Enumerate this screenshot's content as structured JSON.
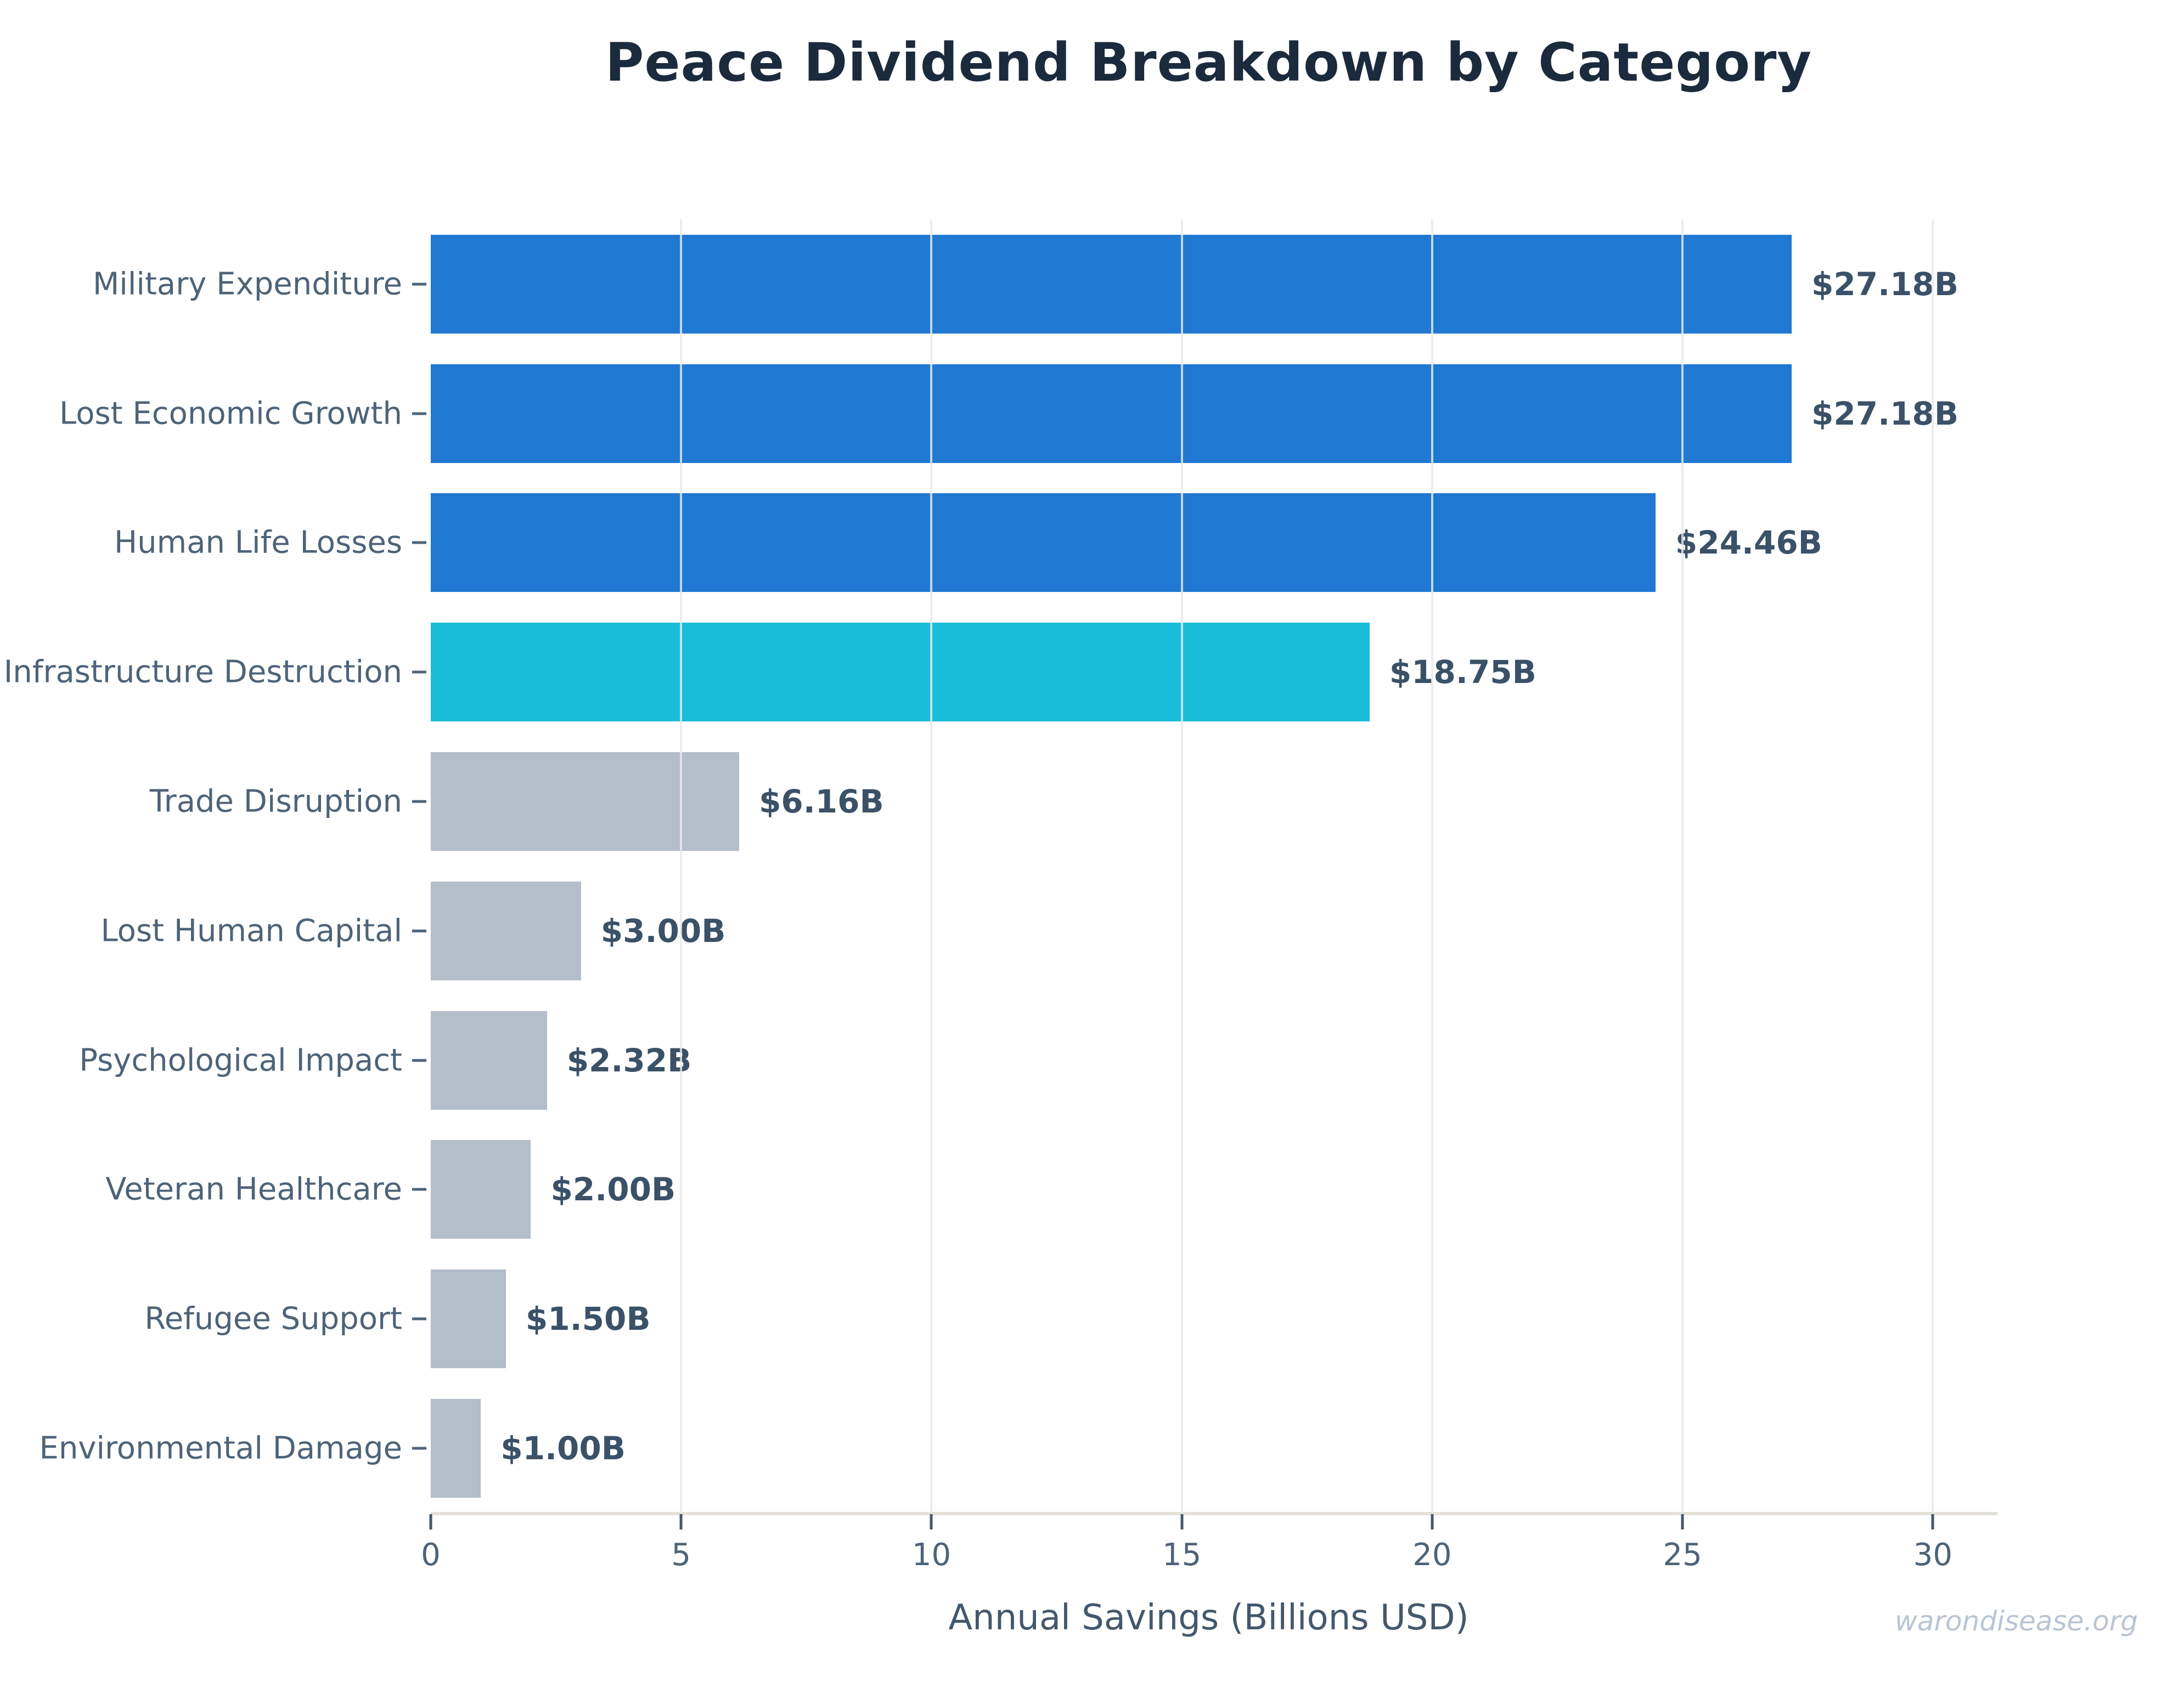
{
  "title": "Peace Dividend Breakdown by Category",
  "watermark": "warondisease.org",
  "chart_data": {
    "type": "bar",
    "orientation": "horizontal",
    "title": "Peace Dividend Breakdown by Category",
    "xlabel": "Annual Savings (Billions USD)",
    "ylabel": "",
    "categories": [
      "Military Expenditure",
      "Lost Economic Growth",
      "Human Life Losses",
      "Infrastructure Destruction",
      "Trade Disruption",
      "Lost Human Capital",
      "Psychological Impact",
      "Veteran Healthcare",
      "Refugee Support",
      "Environmental Damage"
    ],
    "values": [
      27.18,
      27.18,
      24.46,
      18.75,
      6.16,
      3.0,
      2.32,
      2.0,
      1.5,
      1.0
    ],
    "value_labels": [
      "$27.18B",
      "$27.18B",
      "$24.46B",
      "$18.75B",
      "$6.16B",
      "$3.00B",
      "$2.32B",
      "$2.00B",
      "$1.50B",
      "$1.00B"
    ],
    "bar_colors": [
      "#1f78d2",
      "#1f78d2",
      "#1f78d2",
      "#19bdd9",
      "#b4bdca",
      "#b4bdca",
      "#b4bdca",
      "#b4bdca",
      "#b4bdca",
      "#b4bdca"
    ],
    "x_ticks": [
      0,
      5,
      10,
      15,
      20,
      25,
      30
    ],
    "xlim": [
      0,
      31.07
    ],
    "grid": "vertical-light-over-bars",
    "legend": "none",
    "colors": {
      "title_text": "#1b2a3c",
      "category_label": "#4e6378",
      "value_label": "#3a5168",
      "tick_label": "#4e6378",
      "axis_title": "#44586c",
      "axis_line": "#e4e1db",
      "gridline": "#e9e9e9",
      "watermark": "#b9c5d3",
      "background": "#ffffff"
    }
  }
}
